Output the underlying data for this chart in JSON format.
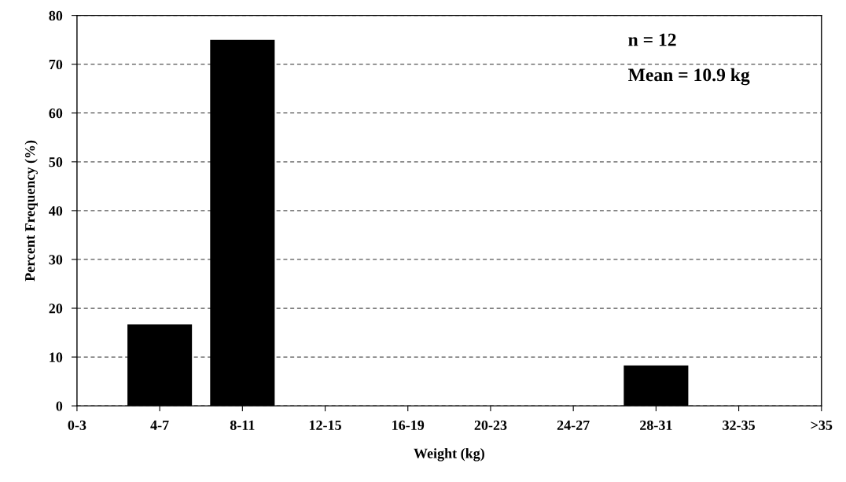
{
  "chart_data": {
    "type": "bar",
    "xlabel": "Weight (kg)",
    "ylabel": "Percent Frequency (%)",
    "categories": [
      "0-3",
      "4-7",
      "8-11",
      "12-15",
      "16-19",
      "20-23",
      "24-27",
      "28-31",
      "32-35",
      ">35"
    ],
    "values": [
      0,
      16.7,
      75,
      0,
      0,
      0,
      0,
      8.3,
      0,
      0
    ],
    "color": "#000000",
    "ylim": [
      0,
      80
    ],
    "yticks": [
      0,
      10,
      20,
      30,
      40,
      50,
      60,
      70,
      80
    ],
    "grid": "y",
    "annotations": [
      "n = 12",
      "Mean = 10.9 kg"
    ]
  }
}
